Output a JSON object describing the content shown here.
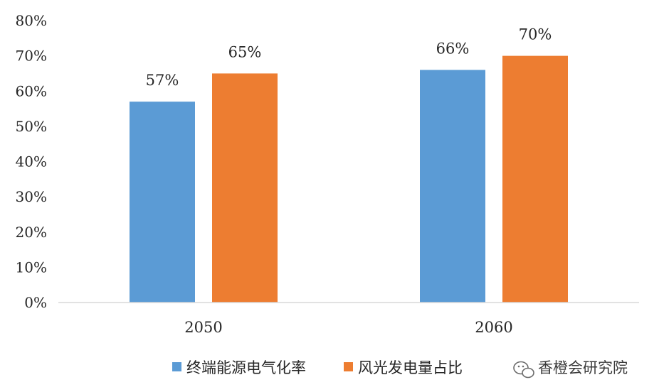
{
  "chart_data": {
    "type": "bar",
    "categories": [
      "2050",
      "2060"
    ],
    "series": [
      {
        "name": "终端能源电气化率",
        "values": [
          57,
          66
        ],
        "labels": [
          "57%",
          "66%"
        ],
        "color": "#5b9bd5"
      },
      {
        "name": "风光发电量占比",
        "values": [
          65,
          70
        ],
        "labels": [
          "65%",
          "70%"
        ],
        "color": "#ed7d31"
      }
    ],
    "ylim": [
      0,
      80
    ],
    "yticks": [
      "0%",
      "10%",
      "20%",
      "30%",
      "40%",
      "50%",
      "60%",
      "70%",
      "80%"
    ],
    "ytick_values": [
      0,
      10,
      20,
      30,
      40,
      50,
      60,
      70,
      80
    ],
    "legend_position": "bottom",
    "grid": false
  },
  "watermark": {
    "icon": "wechat-icon",
    "text": "香橙会研究院"
  }
}
